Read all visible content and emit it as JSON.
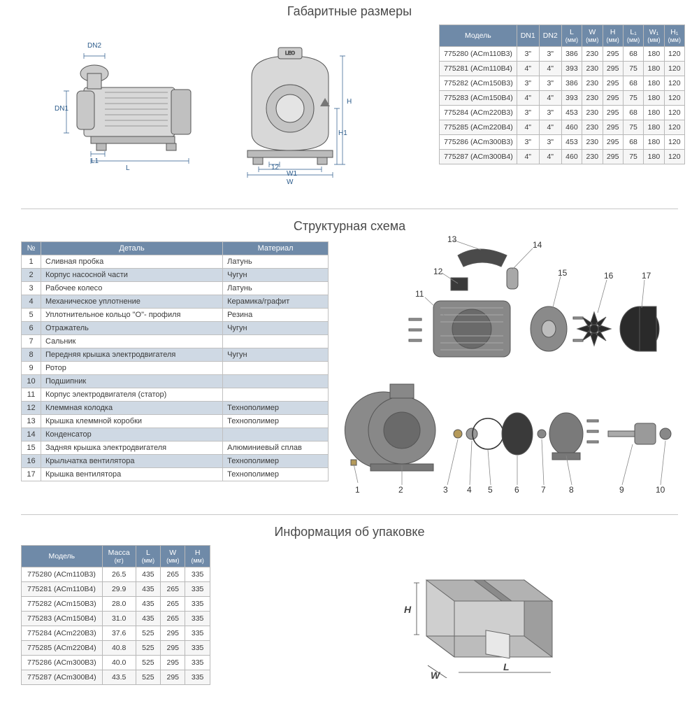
{
  "colors": {
    "header_bg": "#6f8aa8",
    "header_fg": "#ffffff",
    "border": "#b8b8b8",
    "band_bg": "#cfd9e4",
    "alt_row": "#f6f6f6",
    "dim_label": "#2a5a8a",
    "body_text": "#3a3a3a",
    "title": "#4a4a4a"
  },
  "fonts": {
    "title_size_pt": 14,
    "table_size_pt": 8,
    "body_family": "Arial"
  },
  "section1": {
    "title": "Габаритные размеры",
    "dim_labels": {
      "DN1": "DN1",
      "DN2": "DN2",
      "L": "L",
      "L1": "L1",
      "W": "W",
      "W1": "W1",
      "H": "H",
      "H1": "H1",
      "m12": "12"
    },
    "table": {
      "headers": [
        {
          "label": "Модель",
          "sub": ""
        },
        {
          "label": "DN1",
          "sub": ""
        },
        {
          "label": "DN2",
          "sub": ""
        },
        {
          "label": "L",
          "sub": "(мм)"
        },
        {
          "label": "W",
          "sub": "(мм)"
        },
        {
          "label": "H",
          "sub": "(мм)"
        },
        {
          "label": "L₁",
          "sub": "(мм)"
        },
        {
          "label": "W₁",
          "sub": "(мм)"
        },
        {
          "label": "H₁",
          "sub": "(мм)"
        }
      ],
      "rows": [
        [
          "775280 (ACm110B3)",
          "3\"",
          "3\"",
          "386",
          "230",
          "295",
          "68",
          "180",
          "120"
        ],
        [
          "775281 (ACm110B4)",
          "4\"",
          "4\"",
          "393",
          "230",
          "295",
          "75",
          "180",
          "120"
        ],
        [
          "775282 (ACm150B3)",
          "3\"",
          "3\"",
          "386",
          "230",
          "295",
          "68",
          "180",
          "120"
        ],
        [
          "775283 (ACm150B4)",
          "4\"",
          "4\"",
          "393",
          "230",
          "295",
          "75",
          "180",
          "120"
        ],
        [
          "775284 (ACm220B3)",
          "3\"",
          "3\"",
          "453",
          "230",
          "295",
          "68",
          "180",
          "120"
        ],
        [
          "775285 (ACm220B4)",
          "4\"",
          "4\"",
          "460",
          "230",
          "295",
          "75",
          "180",
          "120"
        ],
        [
          "775286 (ACm300B3)",
          "3\"",
          "3\"",
          "453",
          "230",
          "295",
          "68",
          "180",
          "120"
        ],
        [
          "775287 (ACm300B4)",
          "4\"",
          "4\"",
          "460",
          "230",
          "295",
          "75",
          "180",
          "120"
        ]
      ]
    }
  },
  "section2": {
    "title": "Структурная схема",
    "headers": [
      "№",
      "Деталь",
      "Материал"
    ],
    "rows": [
      [
        "1",
        "Сливная пробка",
        "Латунь"
      ],
      [
        "2",
        "Корпус насосной части",
        "Чугун"
      ],
      [
        "3",
        "Рабочее колесо",
        "Латунь"
      ],
      [
        "4",
        "Механическое уплотнение",
        "Керамика/графит"
      ],
      [
        "5",
        "Уплотнительное кольцо \"О\"- профиля",
        "Резина"
      ],
      [
        "6",
        "Отражатель",
        "Чугун"
      ],
      [
        "7",
        "Сальник",
        ""
      ],
      [
        "8",
        "Передняя крышка электродвигателя",
        "Чугун"
      ],
      [
        "9",
        "Ротор",
        ""
      ],
      [
        "10",
        "Подшипник",
        ""
      ],
      [
        "11",
        "Корпус электродвигателя (статор)",
        ""
      ],
      [
        "12",
        "Клеммная колодка",
        "Технополимер"
      ],
      [
        "13",
        "Крышка клеммной коробки",
        "Технополимер"
      ],
      [
        "14",
        "Конденсатор",
        ""
      ],
      [
        "15",
        "Задняя крышка электродвигателя",
        "Алюминиевый сплав"
      ],
      [
        "16",
        "Крыльчатка вентилятора",
        "Технополимер"
      ],
      [
        "17",
        "Крышка вентилятора",
        "Технополимер"
      ]
    ],
    "callouts": [
      "1",
      "2",
      "3",
      "4",
      "5",
      "6",
      "7",
      "8",
      "9",
      "10",
      "11",
      "12",
      "13",
      "14",
      "15",
      "16",
      "17"
    ]
  },
  "section3": {
    "title": "Информация об упаковке",
    "headers": [
      {
        "label": "Модель",
        "sub": ""
      },
      {
        "label": "Масса",
        "sub": "(кг)"
      },
      {
        "label": "L",
        "sub": "(мм)"
      },
      {
        "label": "W",
        "sub": "(мм)"
      },
      {
        "label": "H",
        "sub": "(мм)"
      }
    ],
    "rows": [
      [
        "775280 (ACm110B3)",
        "26.5",
        "435",
        "265",
        "335"
      ],
      [
        "775281 (ACm110B4)",
        "29.9",
        "435",
        "265",
        "335"
      ],
      [
        "775282 (ACm150B3)",
        "28.0",
        "435",
        "265",
        "335"
      ],
      [
        "775283 (ACm150B4)",
        "31.0",
        "435",
        "265",
        "335"
      ],
      [
        "775284 (ACm220B3)",
        "37.6",
        "525",
        "295",
        "335"
      ],
      [
        "775285 (ACm220B4)",
        "40.8",
        "525",
        "295",
        "335"
      ],
      [
        "775286 (ACm300B3)",
        "40.0",
        "525",
        "295",
        "335"
      ],
      [
        "775287 (ACm300B4)",
        "43.5",
        "525",
        "295",
        "335"
      ]
    ],
    "box_labels": {
      "H": "H",
      "W": "W",
      "L": "L"
    }
  }
}
